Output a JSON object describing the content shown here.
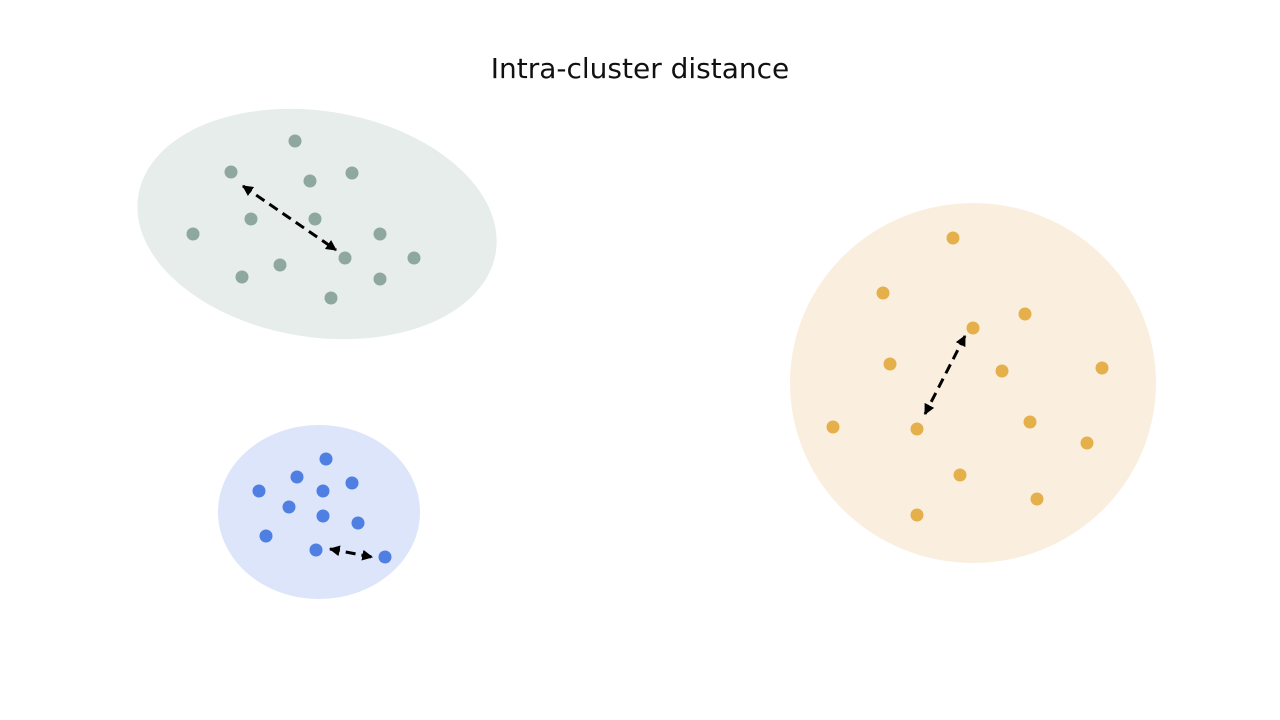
{
  "title": "Intra-cluster distance",
  "colors": {
    "green_region": "#e6edea",
    "green_point": "#8fa89f",
    "blue_region": "#dce5f9",
    "blue_point": "#4f7fe3",
    "orange_region": "#faefde",
    "orange_point": "#e5b04b",
    "arrow": "#000000"
  },
  "clusters": [
    {
      "name": "green-cluster",
      "color_key": "green"
    },
    {
      "name": "blue-cluster",
      "color_key": "blue"
    },
    {
      "name": "orange-cluster",
      "color_key": "orange"
    }
  ]
}
